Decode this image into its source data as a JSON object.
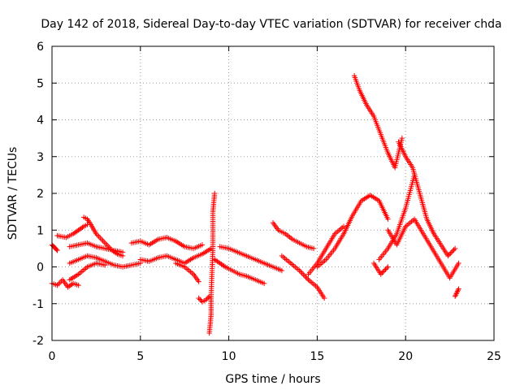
{
  "chart_data": {
    "type": "scatter",
    "title": "Day 142 of 2018, Sidereal Day-to-day VTEC variation (SDTVAR) for receiver chda",
    "xlabel": "GPS time / hours",
    "ylabel": "SDTVAR / TECUs",
    "xlim": [
      0,
      25
    ],
    "ylim": [
      -2,
      6
    ],
    "xticks": [
      "0",
      "5",
      "10",
      "15",
      "20",
      "25"
    ],
    "yticks": [
      "-2",
      "-1",
      "0",
      "1",
      "2",
      "3",
      "4",
      "5",
      "6"
    ],
    "grid": true,
    "marker": "+",
    "series": [
      {
        "name": "SDTVAR",
        "color": "#ff0000",
        "tracks": [
          {
            "x": [
              0.0,
              0.1,
              0.2,
              0.3
            ],
            "y": [
              0.6,
              0.55,
              0.5,
              0.45
            ]
          },
          {
            "x": [
              0.0,
              0.3,
              0.6,
              0.9,
              1.2,
              1.5
            ],
            "y": [
              -0.45,
              -0.5,
              -0.35,
              -0.55,
              -0.45,
              -0.5
            ]
          },
          {
            "x": [
              0.3,
              0.8,
              1.2,
              1.5,
              1.8,
              2.0
            ],
            "y": [
              0.85,
              0.8,
              0.9,
              1.0,
              1.1,
              1.15
            ]
          },
          {
            "x": [
              1.8,
              2.0,
              2.2,
              2.5,
              2.8,
              3.1,
              3.4,
              3.7,
              4.0
            ],
            "y": [
              1.35,
              1.3,
              1.15,
              0.9,
              0.75,
              0.6,
              0.45,
              0.35,
              0.3
            ]
          },
          {
            "x": [
              1.0,
              1.5,
              2.0,
              2.5,
              3.0,
              3.5,
              4.0
            ],
            "y": [
              0.55,
              0.6,
              0.65,
              0.55,
              0.5,
              0.45,
              0.4
            ]
          },
          {
            "x": [
              1.0,
              1.5,
              2.0,
              2.5,
              3.0,
              3.5,
              4.0,
              4.5,
              5.0
            ],
            "y": [
              0.1,
              0.2,
              0.3,
              0.25,
              0.15,
              0.05,
              0.0,
              0.05,
              0.1
            ]
          },
          {
            "x": [
              1.0,
              1.5,
              2.0,
              2.5,
              3.0
            ],
            "y": [
              -0.35,
              -0.2,
              0.0,
              0.1,
              0.05
            ]
          },
          {
            "x": [
              4.5,
              5.0,
              5.5,
              6.0,
              6.5,
              7.0,
              7.5,
              8.0,
              8.5
            ],
            "y": [
              0.65,
              0.7,
              0.6,
              0.75,
              0.8,
              0.7,
              0.55,
              0.5,
              0.6
            ]
          },
          {
            "x": [
              5.0,
              5.5,
              6.0,
              6.5,
              7.0,
              7.5,
              8.0,
              8.5,
              9.0
            ],
            "y": [
              0.2,
              0.15,
              0.25,
              0.3,
              0.2,
              0.1,
              0.25,
              0.35,
              0.5
            ]
          },
          {
            "x": [
              7.0,
              7.5,
              8.0,
              8.3
            ],
            "y": [
              0.1,
              0.0,
              -0.2,
              -0.4
            ]
          },
          {
            "x": [
              8.3,
              8.5,
              8.7,
              8.9
            ],
            "y": [
              -0.85,
              -0.95,
              -0.9,
              -0.8
            ]
          },
          {
            "x": [
              8.9,
              9.0,
              9.0,
              9.1,
              9.1,
              9.2
            ],
            "y": [
              -1.8,
              -1.3,
              -0.8,
              0.5,
              1.5,
              2.0
            ]
          },
          {
            "x": [
              9.2,
              9.5,
              9.8,
              10.2,
              10.6,
              11.0,
              11.5,
              12.0
            ],
            "y": [
              0.2,
              0.1,
              0.0,
              -0.1,
              -0.2,
              -0.25,
              -0.35,
              -0.45
            ]
          },
          {
            "x": [
              9.5,
              10.0,
              10.5,
              11.0,
              11.5,
              12.0,
              12.5,
              13.0
            ],
            "y": [
              0.55,
              0.5,
              0.4,
              0.3,
              0.2,
              0.1,
              0.0,
              -0.1
            ]
          },
          {
            "x": [
              12.5,
              12.8,
              13.2,
              13.6,
              14.0,
              14.4,
              14.8
            ],
            "y": [
              1.2,
              1.0,
              0.9,
              0.75,
              0.65,
              0.55,
              0.5
            ]
          },
          {
            "x": [
              13.0,
              13.5,
              14.0,
              14.5,
              15.0,
              15.4
            ],
            "y": [
              0.3,
              0.1,
              -0.1,
              -0.35,
              -0.55,
              -0.85
            ]
          },
          {
            "x": [
              14.5,
              15.0,
              15.5,
              16.0,
              16.5
            ],
            "y": [
              -0.2,
              0.1,
              0.5,
              0.9,
              1.1
            ]
          },
          {
            "x": [
              15.0,
              15.5,
              16.0,
              16.5,
              17.0,
              17.5,
              18.0,
              18.5,
              19.0
            ],
            "y": [
              0.0,
              0.2,
              0.5,
              0.9,
              1.4,
              1.8,
              1.95,
              1.8,
              1.3
            ]
          },
          {
            "x": [
              17.1,
              17.4,
              17.8,
              18.2,
              18.6,
              19.0,
              19.4,
              19.8
            ],
            "y": [
              5.2,
              4.8,
              4.4,
              4.1,
              3.6,
              3.1,
              2.7,
              3.5
            ]
          },
          {
            "x": [
              19.6,
              20.0,
              20.4,
              20.8,
              21.2,
              21.6,
              22.0,
              22.4,
              22.8
            ],
            "y": [
              3.4,
              3.0,
              2.7,
              2.0,
              1.3,
              0.9,
              0.6,
              0.3,
              0.5
            ]
          },
          {
            "x": [
              19.0,
              19.5,
              20.0,
              20.5,
              21.0,
              21.5,
              22.0,
              22.5,
              23.0
            ],
            "y": [
              1.0,
              0.6,
              1.1,
              1.3,
              0.9,
              0.5,
              0.1,
              -0.3,
              0.1
            ]
          },
          {
            "x": [
              18.5,
              19.0,
              19.5,
              20.0,
              20.5
            ],
            "y": [
              0.2,
              0.5,
              0.9,
              1.6,
              2.5
            ]
          },
          {
            "x": [
              18.2,
              18.6,
              19.0
            ],
            "y": [
              0.1,
              -0.2,
              0.0
            ]
          },
          {
            "x": [
              22.8,
              22.9,
              23.0
            ],
            "y": [
              -0.8,
              -0.7,
              -0.6
            ]
          }
        ]
      }
    ]
  }
}
